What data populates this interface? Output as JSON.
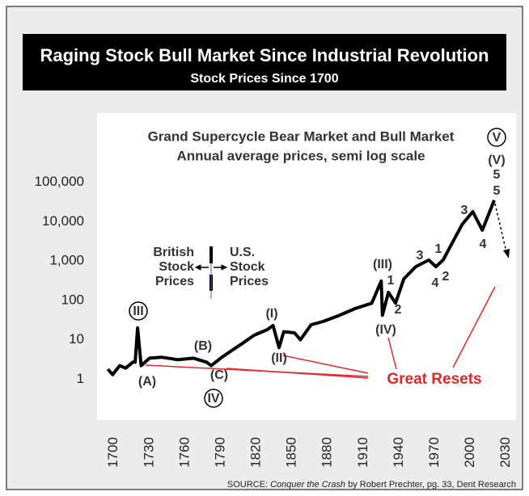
{
  "chart_data": {
    "type": "line",
    "title": "Raging Stock Bull Market Since Industrial Revolution",
    "subtitle": "Stock Prices Since 1700",
    "x": [
      1695,
      1699,
      1705,
      1710,
      1716,
      1718,
      1720,
      1723,
      1730,
      1740,
      1754,
      1767,
      1778,
      1782,
      1791,
      1801,
      1808,
      1818,
      1829,
      1834,
      1839,
      1843,
      1852,
      1857,
      1866,
      1876,
      1890,
      1903,
      1917,
      1925,
      1926,
      1931,
      1937,
      1944,
      1954,
      1965,
      1971,
      1977,
      1985,
      1993,
      2002,
      2010,
      2020
    ],
    "series": [
      {
        "name": "Stock Prices",
        "color": "#000000",
        "values": [
          1.8,
          1.3,
          2.2,
          1.9,
          2.7,
          2.7,
          20,
          2.2,
          3.4,
          3.6,
          3.1,
          3.4,
          2.7,
          2.2,
          3.6,
          5.8,
          8,
          13,
          18,
          23,
          6.3,
          16,
          15,
          10,
          24,
          29,
          42,
          62,
          85,
          310,
          42,
          160,
          85,
          355,
          720,
          1060,
          720,
          1060,
          3000,
          8500,
          18000,
          6100,
          35000
        ]
      }
    ],
    "xlim": [
      1690,
      2035
    ],
    "xticks": [
      1700,
      1730,
      1760,
      1790,
      1820,
      1850,
      1880,
      1910,
      1940,
      1970,
      2000,
      2030
    ],
    "log_scale": true,
    "ylim": [
      0.1,
      1000000
    ],
    "yticks": [
      1,
      10,
      100,
      {
        "value": 1000,
        "label": "1,000"
      },
      {
        "value": 10000,
        "label": "10,000"
      },
      {
        "value": 100000,
        "label": "100,000"
      }
    ],
    "grid": false,
    "chart_title": "Grand Supercycle Bear Market and Bull Market",
    "chart_subtitle": "Annual average prices, semi log scale",
    "annotations": [
      "V",
      "(V)",
      "5",
      "5",
      "3",
      "4",
      "3",
      "1",
      "4",
      "2",
      "(III)",
      "1",
      "2",
      "(IV)",
      "(I)",
      "(II)",
      "(B)",
      "(A)",
      "(C)",
      "III",
      "IV"
    ],
    "british_label": [
      "British",
      "Stock",
      "Prices"
    ],
    "us_label": [
      "U.S.",
      "Stock",
      "Prices"
    ],
    "resets_label": "Great Resets",
    "source": [
      "SOURCE: ",
      "Conquer the Crash",
      " by Robert Prechter, pg. 33, Dent Research"
    ]
  }
}
